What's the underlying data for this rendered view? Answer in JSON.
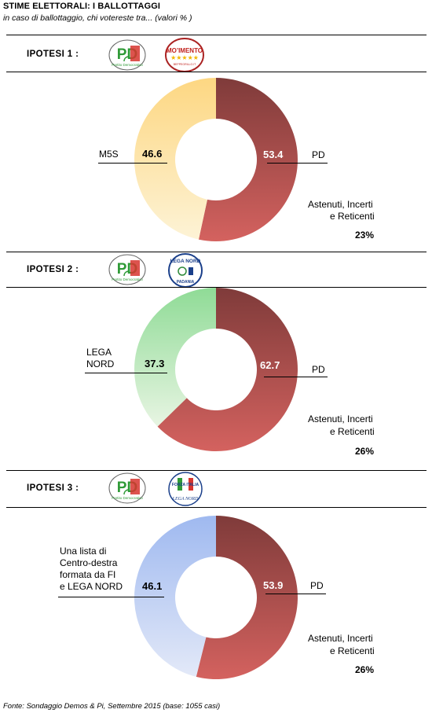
{
  "title": "STIME ELETTORALI:  I BALLOTTAGGI",
  "subtitle": "in caso di ballottaggio, chi votereste tra... (valori % )",
  "footer": "Fonte: Sondaggio Demos & Pi, Settembre 2015 (base: 1055 casi)",
  "logos": {
    "pd": {
      "big_text": "PD",
      "small_text": "Partito Democratico"
    },
    "m5s": {
      "line1": "MO’IMENTO",
      "stars": "★★★★★",
      "line2": "BEPPEGRILLO.IT"
    },
    "lega": {
      "top": "LEGA NORD",
      "bottom": "PADANIA"
    },
    "fi": {
      "top": "FORZA ITALIA",
      "bottom": "LEGA NORD"
    }
  },
  "colors": {
    "pd_dark": "#7f3b3a",
    "pd_light": "#d4625f",
    "m5s_light": "#fdf3d6",
    "m5s_dark": "#fdd782",
    "lega_light": "#e8f5e3",
    "lega_dark": "#8fdb96",
    "cdx_light": "#e3e9f8",
    "cdx_dark": "#9fb9f0"
  },
  "chart_data": [
    {
      "type": "pie",
      "hypothesis_label": "IPOTESI 1 :",
      "categories": [
        "PD",
        "M5S"
      ],
      "values": [
        53.4,
        46.6
      ],
      "labels": {
        "right": "PD",
        "left": "M5S"
      },
      "value_text": {
        "right": "53.4",
        "left": "46.6"
      },
      "abstain_label": [
        "Astenuti, Incerti",
        "e Reticenti"
      ],
      "abstain_pct": "23%",
      "other_color_key": "m5s"
    },
    {
      "type": "pie",
      "hypothesis_label": "IPOTESI 2 :",
      "categories": [
        "PD",
        "LEGA NORD"
      ],
      "values": [
        62.7,
        37.3
      ],
      "labels": {
        "right": "PD",
        "left": [
          "LEGA",
          "NORD"
        ]
      },
      "value_text": {
        "right": "62.7",
        "left": "37.3"
      },
      "abstain_label": [
        "Astenuti, Incerti",
        "e Reticenti"
      ],
      "abstain_pct": "26%",
      "other_color_key": "lega"
    },
    {
      "type": "pie",
      "hypothesis_label": "IPOTESI 3 :",
      "categories": [
        "PD",
        "Una lista di Centro-destra formata da FI e LEGA NORD"
      ],
      "values": [
        53.9,
        46.1
      ],
      "labels": {
        "right": "PD",
        "left": [
          "Una lista di",
          "Centro-destra",
          "formata  da FI",
          "e LEGA NORD"
        ]
      },
      "value_text": {
        "right": "53.9",
        "left": "46.1"
      },
      "abstain_label": [
        "Astenuti, Incerti",
        "e Reticenti"
      ],
      "abstain_pct": "26%",
      "other_color_key": "cdx"
    }
  ]
}
